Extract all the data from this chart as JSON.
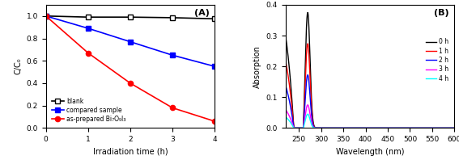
{
  "panel_A": {
    "label": "(A)",
    "xlabel": "Irradiation time (h)",
    "ylabel": "C/C₀",
    "xlim": [
      0,
      4
    ],
    "ylim": [
      0,
      1.1
    ],
    "yticks": [
      0.0,
      0.2,
      0.4,
      0.6,
      0.8,
      1.0
    ],
    "xticks": [
      0,
      1,
      2,
      3,
      4
    ],
    "blank": {
      "x": [
        0,
        1,
        2,
        3,
        4
      ],
      "y": [
        1.0,
        0.99,
        0.99,
        0.985,
        0.975
      ],
      "color": "black",
      "marker": "s",
      "markerfacecolor": "white",
      "markeredgecolor": "black",
      "label": "blank"
    },
    "compared": {
      "x": [
        0,
        1,
        2,
        3,
        4
      ],
      "y": [
        1.0,
        0.89,
        0.77,
        0.65,
        0.55
      ],
      "color": "blue",
      "marker": "s",
      "markerfacecolor": "blue",
      "markeredgecolor": "blue",
      "label": "compared sample"
    },
    "asprepared": {
      "x": [
        0,
        1,
        2,
        3,
        4
      ],
      "y": [
        1.0,
        0.67,
        0.4,
        0.18,
        0.06
      ],
      "color": "red",
      "marker": "o",
      "markerfacecolor": "red",
      "markeredgecolor": "red",
      "label": "as-prepared Bi₇O₉I₃"
    }
  },
  "panel_B": {
    "label": "(B)",
    "xlabel": "Wavelength (nm)",
    "ylabel": "Absorption",
    "xlim": [
      220,
      600
    ],
    "ylim": [
      0,
      0.4
    ],
    "yticks": [
      0.0,
      0.1,
      0.2,
      0.3,
      0.4
    ],
    "xticks": [
      250,
      300,
      350,
      400,
      450,
      500,
      550,
      600
    ],
    "series": [
      {
        "label": "0 h",
        "color": "black",
        "scale": 1.0
      },
      {
        "label": "1 h",
        "color": "red",
        "scale": 0.73
      },
      {
        "label": "2 h",
        "color": "blue",
        "scale": 0.46
      },
      {
        "label": "3 h",
        "color": "magenta",
        "scale": 0.2
      },
      {
        "label": "4 h",
        "color": "cyan",
        "scale": 0.12
      }
    ]
  }
}
